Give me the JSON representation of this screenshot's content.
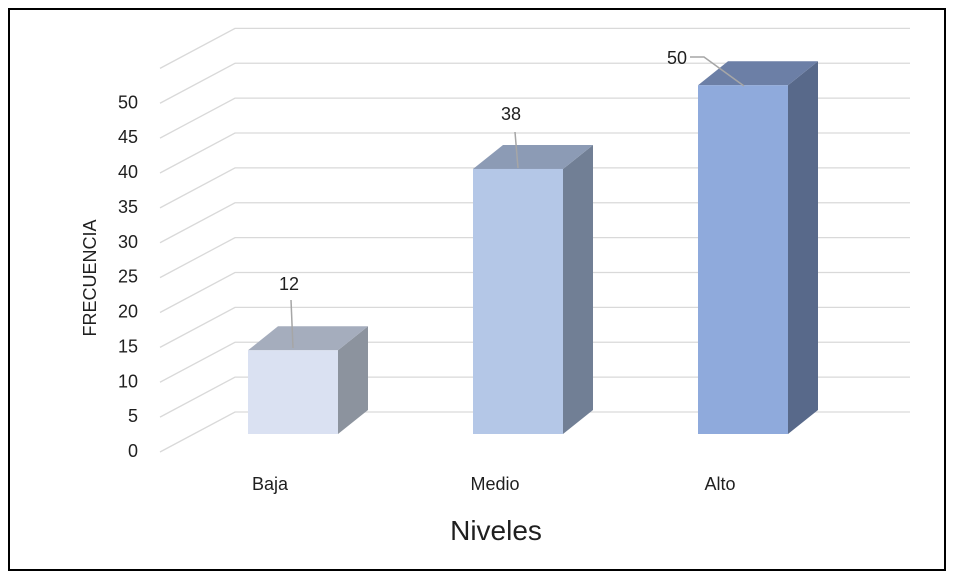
{
  "chart_data": {
    "type": "bar",
    "style": "3d-column",
    "categories": [
      "Baja",
      "Medio",
      "Alto"
    ],
    "values": [
      12,
      38,
      50
    ],
    "data_labels": [
      "12",
      "38",
      "50"
    ],
    "title": "",
    "xlabel": "Niveles",
    "ylabel": "FRECUENCIA",
    "ylim": [
      0,
      55
    ],
    "yticks": [
      0,
      5,
      10,
      15,
      20,
      25,
      30,
      35,
      40,
      45,
      50
    ],
    "grid": true,
    "legend": "none",
    "colors": {
      "bars": [
        {
          "front": "#dae1f2",
          "top": "#a5adbd",
          "side": "#8c939e"
        },
        {
          "front": "#b4c7e7",
          "top": "#8c9bb5",
          "side": "#717f95"
        },
        {
          "front": "#8faadc",
          "top": "#6c7fa6",
          "side": "#58698a"
        }
      ],
      "grid": "#d9d9d9",
      "leader": "#a6a6a6"
    }
  }
}
